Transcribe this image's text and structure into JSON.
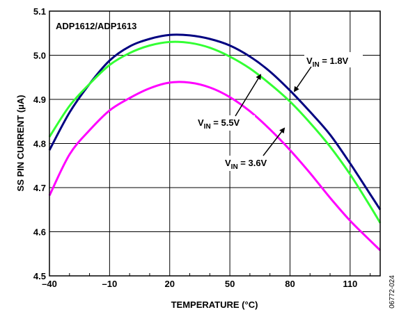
{
  "chart_data": {
    "type": "line",
    "xlabel": "TEMPERATURE (°C)",
    "ylabel": "SS PIN CURRENT (µA)",
    "xlim": [
      -40,
      125
    ],
    "ylim": [
      4.5,
      5.1
    ],
    "x_ticks": [
      -40,
      -10,
      20,
      50,
      80,
      110
    ],
    "x_tick_labels": [
      "–40",
      "–10",
      "20",
      "50",
      "80",
      "110"
    ],
    "y_ticks": [
      4.5,
      4.6,
      4.7,
      4.8,
      4.9,
      5.0,
      5.1
    ],
    "y_tick_labels": [
      "4.5",
      "4.6",
      "4.7",
      "4.8",
      "4.9",
      "5.0",
      "5.1"
    ],
    "grid": true,
    "series": [
      {
        "label_main": "V",
        "label_sub": "IN",
        "label_rest": " = 1.8V",
        "color": "#000080",
        "x": [
          -40,
          -30,
          -20,
          -10,
          0,
          10,
          20,
          30,
          40,
          50,
          60,
          70,
          80,
          90,
          100,
          110,
          120,
          125
        ],
        "y": [
          4.785,
          4.87,
          4.935,
          4.988,
          5.02,
          5.037,
          5.046,
          5.045,
          5.037,
          5.022,
          4.997,
          4.963,
          4.92,
          4.872,
          4.82,
          4.755,
          4.685,
          4.65
        ]
      },
      {
        "label_main": "V",
        "label_sub": "IN",
        "label_rest": " = 5.5V",
        "color": "#33ff33",
        "x": [
          -40,
          -30,
          -20,
          -10,
          0,
          10,
          20,
          30,
          40,
          50,
          60,
          70,
          80,
          90,
          100,
          110,
          120,
          125
        ],
        "y": [
          4.815,
          4.885,
          4.935,
          4.978,
          5.005,
          5.022,
          5.03,
          5.028,
          5.017,
          4.997,
          4.97,
          4.935,
          4.895,
          4.847,
          4.793,
          4.73,
          4.658,
          4.62
        ]
      },
      {
        "label_main": "V",
        "label_sub": "IN",
        "label_rest": " = 3.6V",
        "color": "#ff00ff",
        "x": [
          -40,
          -30,
          -20,
          -10,
          0,
          10,
          20,
          30,
          40,
          50,
          60,
          70,
          80,
          90,
          100,
          110,
          120,
          125
        ],
        "y": [
          4.682,
          4.775,
          4.83,
          4.875,
          4.903,
          4.925,
          4.938,
          4.938,
          4.927,
          4.905,
          4.873,
          4.832,
          4.785,
          4.733,
          4.677,
          4.625,
          4.58,
          4.558
        ]
      }
    ],
    "annotations": [
      {
        "text": "ADP1612/ADP1613"
      }
    ],
    "figure_id": "06772-024"
  }
}
